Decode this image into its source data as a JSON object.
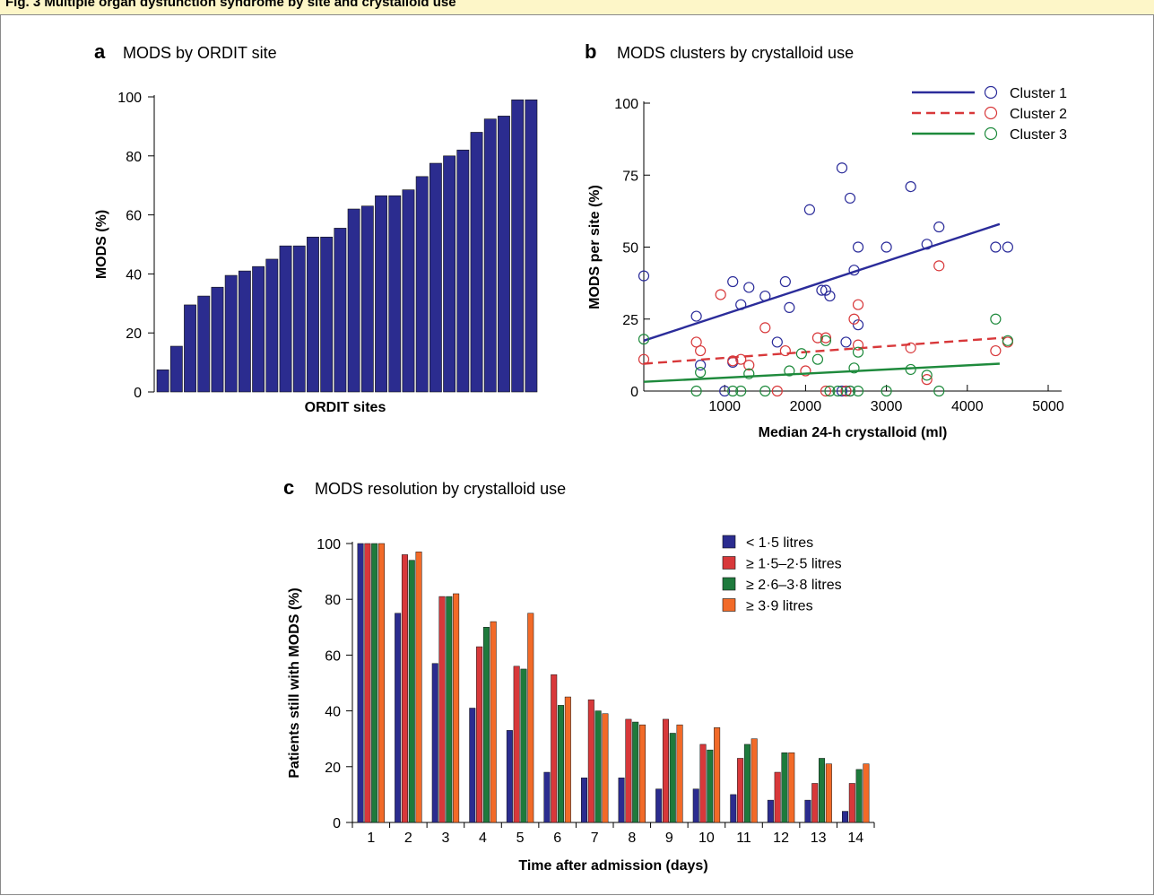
{
  "figure": {
    "title": "Fig. 3 Multiple organ dysfunction syndrome by site and crystalloid use"
  },
  "colors": {
    "header_bg": "#fdf6c8",
    "navy": "#2b2c8f",
    "red": "#d8383a",
    "green": "#1e7a3c",
    "orange": "#f26a28",
    "cluster1": "#2b2c9a",
    "cluster2": "#d8383a",
    "cluster3": "#1e8a3c"
  },
  "chart_data": [
    {
      "id": "a",
      "panel_letter": "a",
      "title": "MODS by ORDIT site",
      "type": "bar",
      "xlabel": "ORDIT sites",
      "ylabel": "MODS (%)",
      "ylim": [
        0,
        100
      ],
      "yticks": [
        "0",
        "20",
        "40",
        "60",
        "80",
        "100"
      ],
      "grid": false,
      "values": [
        7.5,
        15.5,
        29.5,
        32.5,
        35.5,
        39.5,
        41,
        42.5,
        45,
        49.5,
        49.5,
        52.5,
        52.5,
        55.5,
        62,
        63,
        66.5,
        66.5,
        68.5,
        73,
        77.5,
        80,
        82,
        88,
        92.5,
        93.5,
        99,
        99
      ]
    },
    {
      "id": "b",
      "panel_letter": "b",
      "title": "MODS clusters by crystalloid use",
      "type": "scatter",
      "xlabel": "Median 24-h crystalloid (ml)",
      "ylabel": "MODS per site (%)",
      "xlim": [
        0,
        5000
      ],
      "ylim": [
        0,
        100
      ],
      "xticks": [
        "1000",
        "2000",
        "3000",
        "4000",
        "5000"
      ],
      "yticks": [
        "0",
        "25",
        "50",
        "75",
        "100"
      ],
      "legend_position": "top-right",
      "grid": false,
      "series": [
        {
          "name": "Cluster 1",
          "line_style": "solid",
          "fit_line": [
            [
              0,
              17.5
            ],
            [
              4400,
              58
            ]
          ],
          "points": [
            [
              0,
              40
            ],
            [
              650,
              26
            ],
            [
              700,
              9
            ],
            [
              1000,
              0
            ],
            [
              1100,
              38
            ],
            [
              1100,
              10
            ],
            [
              1200,
              30
            ],
            [
              1300,
              36
            ],
            [
              1500,
              33
            ],
            [
              1650,
              17
            ],
            [
              1750,
              38
            ],
            [
              1800,
              29
            ],
            [
              2050,
              63
            ],
            [
              2200,
              35
            ],
            [
              2250,
              35
            ],
            [
              2300,
              33
            ],
            [
              2450,
              0
            ],
            [
              2450,
              77.5
            ],
            [
              2500,
              17
            ],
            [
              2500,
              0
            ],
            [
              2550,
              0
            ],
            [
              2550,
              67
            ],
            [
              2600,
              42
            ],
            [
              2650,
              23
            ],
            [
              2650,
              50
            ],
            [
              3000,
              50
            ],
            [
              3300,
              71
            ],
            [
              3500,
              51
            ],
            [
              3650,
              57
            ],
            [
              4350,
              50
            ],
            [
              4500,
              50
            ]
          ]
        },
        {
          "name": "Cluster 2",
          "line_style": "dashed",
          "fit_line": [
            [
              0,
              9.5
            ],
            [
              4450,
              18.5
            ]
          ],
          "points": [
            [
              0,
              11
            ],
            [
              650,
              17
            ],
            [
              700,
              14
            ],
            [
              950,
              33.5
            ],
            [
              1100,
              10.5
            ],
            [
              1200,
              11
            ],
            [
              1300,
              9
            ],
            [
              1500,
              22
            ],
            [
              1650,
              0
            ],
            [
              1750,
              14
            ],
            [
              2000,
              7
            ],
            [
              2150,
              18.5
            ],
            [
              2250,
              18.5
            ],
            [
              2250,
              0
            ],
            [
              2500,
              0
            ],
            [
              2600,
              25
            ],
            [
              2650,
              30
            ],
            [
              2650,
              16
            ],
            [
              3300,
              15
            ],
            [
              3500,
              4
            ],
            [
              3650,
              43.5
            ],
            [
              4350,
              14
            ],
            [
              4500,
              17
            ]
          ]
        },
        {
          "name": "Cluster 3",
          "line_style": "solid",
          "fit_line": [
            [
              0,
              3.2
            ],
            [
              4400,
              9.5
            ]
          ],
          "points": [
            [
              0,
              18
            ],
            [
              650,
              0
            ],
            [
              700,
              6.5
            ],
            [
              1100,
              0
            ],
            [
              1200,
              0
            ],
            [
              1300,
              6
            ],
            [
              1500,
              0
            ],
            [
              1800,
              7
            ],
            [
              1950,
              13
            ],
            [
              2150,
              11
            ],
            [
              2250,
              17.5
            ],
            [
              2300,
              0
            ],
            [
              2400,
              0
            ],
            [
              2550,
              0
            ],
            [
              2600,
              8
            ],
            [
              2650,
              13.5
            ],
            [
              2650,
              0
            ],
            [
              3000,
              0
            ],
            [
              3300,
              7.5
            ],
            [
              3500,
              5.5
            ],
            [
              3650,
              0
            ],
            [
              4350,
              25
            ],
            [
              4500,
              17.5
            ]
          ]
        }
      ]
    },
    {
      "id": "c",
      "panel_letter": "c",
      "title": "MODS resolution by crystalloid use",
      "type": "bar",
      "xlabel": "Time after admission (days)",
      "ylabel": "Patients still with MODS (%)",
      "ylim": [
        0,
        100
      ],
      "yticks": [
        "0",
        "20",
        "40",
        "60",
        "80",
        "100"
      ],
      "legend_position": "top-right",
      "grid": false,
      "categories": [
        "1",
        "2",
        "3",
        "4",
        "5",
        "6",
        "7",
        "8",
        "9",
        "10",
        "11",
        "12",
        "13",
        "14"
      ],
      "series": [
        {
          "name": "< 1·5 litres",
          "values": [
            100,
            75,
            57,
            41,
            33,
            18,
            16,
            16,
            12,
            12,
            10,
            8,
            8,
            4
          ]
        },
        {
          "name": "≥ 1·5–2·5 litres",
          "values": [
            100,
            96,
            81,
            63,
            56,
            53,
            44,
            37,
            37,
            28,
            23,
            18,
            14,
            14
          ]
        },
        {
          "name": "≥ 2·6–3·8 litres",
          "values": [
            100,
            94,
            81,
            70,
            55,
            42,
            40,
            36,
            32,
            26,
            28,
            25,
            23,
            19
          ]
        },
        {
          "name": "≥ 3·9 litres",
          "values": [
            100,
            97,
            82,
            72,
            75,
            45,
            39,
            35,
            35,
            34,
            30,
            25,
            21,
            21
          ]
        }
      ]
    }
  ]
}
